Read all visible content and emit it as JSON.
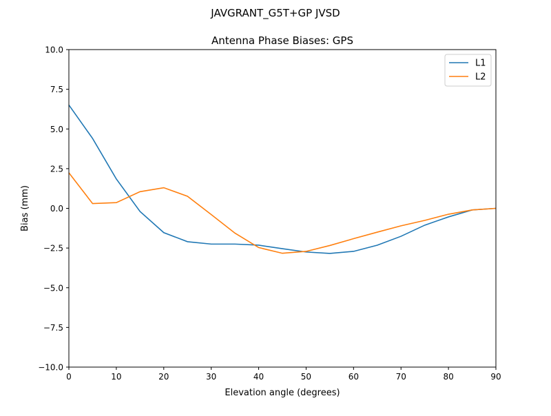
{
  "chart_data": {
    "type": "line",
    "suptitle": "JAVGRANT_G5T+GP JVSD",
    "title": "Antenna Phase Biases: GPS",
    "xlabel": "Elevation angle (degrees)",
    "ylabel": "Bias (mm)",
    "xlim": [
      0,
      90
    ],
    "ylim": [
      -10,
      10
    ],
    "xticks": [
      0,
      10,
      20,
      30,
      40,
      50,
      60,
      70,
      80,
      90
    ],
    "xtick_labels": [
      "0",
      "10",
      "20",
      "30",
      "40",
      "50",
      "60",
      "70",
      "80",
      "90"
    ],
    "yticks": [
      -10,
      -7.5,
      -5,
      -2.5,
      0,
      2.5,
      5,
      7.5,
      10
    ],
    "ytick_labels": [
      "−10.0",
      "−7.5",
      "−5.0",
      "−2.5",
      "0.0",
      "2.5",
      "5.0",
      "7.5",
      "10.0"
    ],
    "grid": false,
    "legend_position": "top-right",
    "x": [
      0,
      5,
      10,
      15,
      20,
      25,
      30,
      35,
      40,
      45,
      50,
      55,
      60,
      65,
      70,
      75,
      80,
      85,
      90
    ],
    "series": [
      {
        "name": "L1",
        "color": "#1f77b4",
        "values": [
          6.51,
          4.4,
          1.85,
          -0.2,
          -1.53,
          -2.1,
          -2.25,
          -2.25,
          -2.32,
          -2.54,
          -2.75,
          -2.84,
          -2.71,
          -2.32,
          -1.76,
          -1.06,
          -0.54,
          -0.1,
          0.0
        ]
      },
      {
        "name": "L2",
        "color": "#ff7f0e",
        "values": [
          2.24,
          0.3,
          0.36,
          1.05,
          1.3,
          0.76,
          -0.39,
          -1.56,
          -2.47,
          -2.83,
          -2.71,
          -2.34,
          -1.91,
          -1.5,
          -1.1,
          -0.76,
          -0.37,
          -0.1,
          0.0
        ]
      }
    ]
  }
}
